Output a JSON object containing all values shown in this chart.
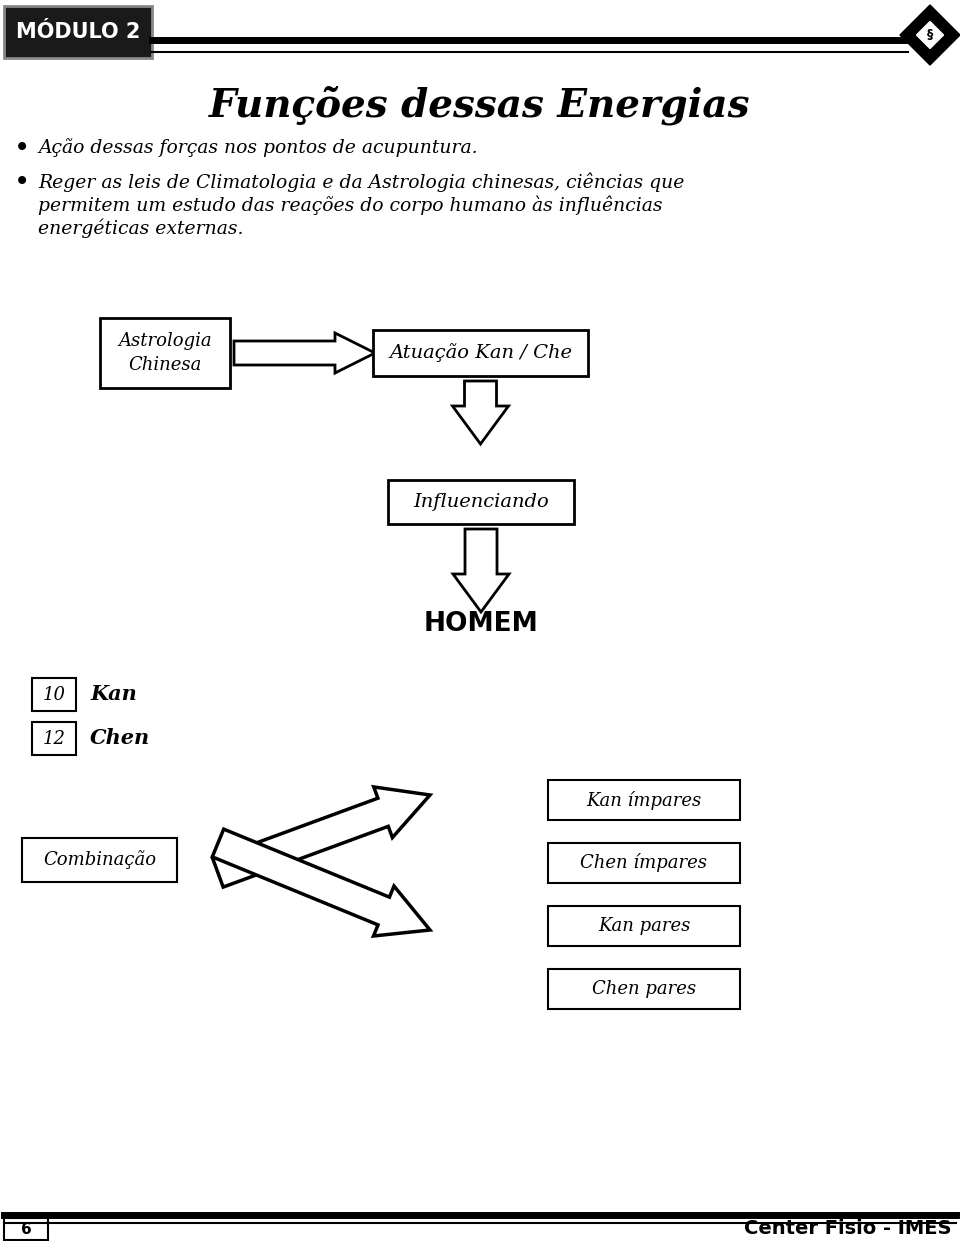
{
  "title": "Funções dessas Energias",
  "module_label": "MÓDULO 2",
  "page_number": "6",
  "footer_text": "Center Fisio - IMES",
  "bullet1": "Ação dessas forças nos pontos de acupuntura.",
  "bullet2_line1": "Reger as leis de Climatologia e da Astrologia chinesas, ciências que",
  "bullet2_line2": "permitem um estudo das reações do corpo humano às influências",
  "bullet2_line3": "energéticas externas.",
  "box_astrologia": "Astrologia\nChinesa",
  "box_atuacao": "Atuação Kan / Che",
  "box_influenciando": "Influenciando",
  "label_homem": "HOMEM",
  "box10_label": "10",
  "label_kan": "Kan",
  "box12_label": "12",
  "label_chen": "Chen",
  "box_combinacao": "Combinação",
  "box_kan_impares": "Kan ímpares",
  "box_chen_impares": "Chen ímpares",
  "box_kan_pares": "Kan pares",
  "box_chen_pares": "Chen pares",
  "bg_color": "#ffffff",
  "text_color": "#000000",
  "header_bg": "#1a1a1a",
  "header_text_color": "#ffffff"
}
